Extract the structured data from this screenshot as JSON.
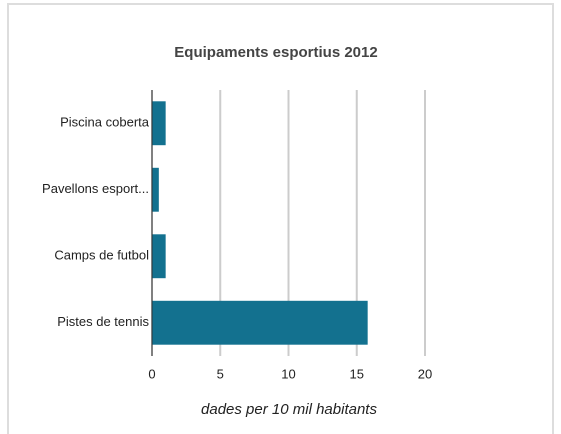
{
  "chart_data": {
    "type": "barh",
    "title": "Equipaments esportius 2012",
    "categories": [
      "Piscina coberta",
      "Pavellons esport...",
      "Camps de futbol",
      "Pistes de tennis"
    ],
    "values": [
      1,
      0.5,
      1,
      15.8
    ],
    "color": "#13718f",
    "xlabel": "dades per 10 mil habitants",
    "xlim": [
      0,
      20
    ],
    "xticks": [
      0,
      5,
      10,
      15,
      20
    ],
    "grid": true
  }
}
